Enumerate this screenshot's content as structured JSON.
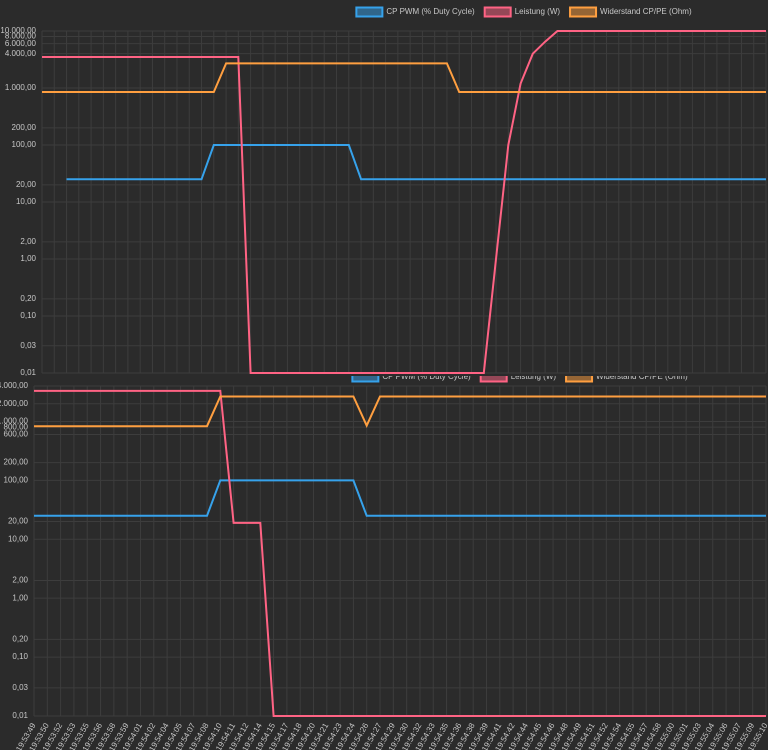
{
  "chart_data": [
    {
      "type": "line",
      "log_scale": true,
      "grid": true,
      "legend": "top",
      "categories": [
        null,
        null,
        null,
        null,
        null,
        null,
        null,
        null,
        null,
        null,
        null,
        null,
        null,
        null,
        null,
        null,
        null,
        null,
        null,
        null,
        null,
        null,
        null,
        null,
        null,
        null,
        null,
        null,
        null,
        null,
        null,
        null,
        null,
        null,
        null,
        null,
        null,
        null,
        null,
        null,
        null,
        null,
        null,
        null,
        null,
        null,
        null,
        null,
        null,
        null,
        null,
        null,
        null,
        null,
        null,
        null,
        null,
        null,
        null,
        null
      ],
      "ylim": [
        0.01,
        10000
      ],
      "yticks": [
        {
          "value": 10000,
          "label": "10.000,00"
        },
        {
          "value": 8000,
          "label": "8.000,00"
        },
        {
          "value": 6000,
          "label": "6.000,00"
        },
        {
          "value": 4000,
          "label": "4.000,00"
        },
        {
          "value": 1000,
          "label": "1.000,00"
        },
        {
          "value": 200,
          "label": "200,00"
        },
        {
          "value": 100,
          "label": "100,00"
        },
        {
          "value": 20,
          "label": "20,00"
        },
        {
          "value": 10,
          "label": "10,00"
        },
        {
          "value": 2,
          "label": "2,00"
        },
        {
          "value": 1,
          "label": "1,00"
        },
        {
          "value": 0.2,
          "label": "0,20"
        },
        {
          "value": 0.1,
          "label": "0,10"
        },
        {
          "value": 0.03,
          "label": "0,03"
        },
        {
          "value": 0.01,
          "label": "0,01"
        }
      ],
      "series": [
        {
          "name": "CP PWM (% Duty Cycle)",
          "color": "#36a2eb",
          "values": [
            null,
            null,
            25,
            25,
            25,
            25,
            25,
            25,
            25,
            25,
            25,
            25,
            25,
            25,
            100,
            100,
            100,
            100,
            100,
            100,
            100,
            100,
            100,
            100,
            100,
            100,
            25,
            25,
            25,
            25,
            25,
            25,
            25,
            25,
            25,
            25,
            25,
            25,
            25,
            25,
            25,
            25,
            25,
            25,
            25,
            25,
            25,
            25,
            25,
            25,
            25,
            25,
            25,
            25,
            25,
            25,
            25,
            25,
            25,
            25
          ]
        },
        {
          "name": "Leistung (W)",
          "color": "#ff6384",
          "values": [
            3500,
            3500,
            3500,
            3500,
            3500,
            3500,
            3500,
            3500,
            3500,
            3500,
            3500,
            3500,
            3500,
            3500,
            3500,
            3500,
            3500,
            0.01,
            0.01,
            0.01,
            0.01,
            0.01,
            0.01,
            0.01,
            0.01,
            0.01,
            0.01,
            0.01,
            0.01,
            0.01,
            0.01,
            0.01,
            0.01,
            0.01,
            0.01,
            0.01,
            0.01,
            1,
            100,
            1200,
            4000,
            6500,
            10000,
            10000,
            10000,
            10000,
            10000,
            10000,
            10000,
            10000,
            10000,
            10000,
            10000,
            10000,
            10000,
            10000,
            10000,
            10000,
            10000,
            10000
          ]
        },
        {
          "name": "Widerstand CP/PE (Ohm)",
          "color": "#ff9f40",
          "values": [
            850,
            850,
            850,
            850,
            850,
            850,
            850,
            850,
            850,
            850,
            850,
            850,
            850,
            850,
            850,
            2700,
            2700,
            2700,
            2700,
            2700,
            2700,
            2700,
            2700,
            2700,
            2700,
            2700,
            2700,
            2700,
            2700,
            2700,
            2700,
            2700,
            2700,
            2700,
            850,
            850,
            850,
            850,
            850,
            850,
            850,
            850,
            850,
            850,
            850,
            850,
            850,
            850,
            850,
            850,
            850,
            850,
            850,
            850,
            850,
            850,
            850,
            850,
            850,
            850
          ]
        }
      ]
    },
    {
      "type": "line",
      "log_scale": true,
      "grid": true,
      "legend": "top",
      "categories": [
        "19:53:49",
        "19:53:50",
        "19:53:52",
        "19:53:53",
        "19:53:55",
        "19:53:56",
        "19:53:58",
        "19:53:59",
        "19:54:01",
        "19:54:02",
        "19:54:04",
        "19:54:05",
        "19:54:07",
        "19:54:08",
        "19:54:10",
        "19:54:11",
        "19:54:12",
        "19:54:14",
        "19:54:15",
        "19:54:17",
        "19:54:18",
        "19:54:20",
        "19:54:21",
        "19:54:23",
        "19:54:24",
        "19:54:26",
        "19:54:27",
        "19:54:29",
        "19:54:30",
        "19:54:32",
        "19:54:33",
        "19:54:35",
        "19:54:36",
        "19:54:38",
        "19:54:39",
        "19:54:41",
        "19:54:42",
        "19:54:44",
        "19:54:45",
        "19:54:46",
        "19:54:48",
        "19:54:49",
        "19:54:51",
        "19:54:52",
        "19:54:54",
        "19:54:55",
        "19:54:57",
        "19:54:58",
        "19:55:00",
        "19:55:01",
        "19:55:03",
        "19:55:04",
        "19:55:06",
        "19:55:07",
        "19:55:09",
        "19:55:10"
      ],
      "ylim": [
        0.01,
        4000
      ],
      "yticks": [
        {
          "value": 4000,
          "label": "4.000,00"
        },
        {
          "value": 2000,
          "label": "2.000,00"
        },
        {
          "value": 1000,
          "label": "1.000,00"
        },
        {
          "value": 800,
          "label": "800,00"
        },
        {
          "value": 600,
          "label": "600,00"
        },
        {
          "value": 200,
          "label": "200,00"
        },
        {
          "value": 100,
          "label": "100,00"
        },
        {
          "value": 20,
          "label": "20,00"
        },
        {
          "value": 10,
          "label": "10,00"
        },
        {
          "value": 2,
          "label": "2,00"
        },
        {
          "value": 1,
          "label": "1,00"
        },
        {
          "value": 0.2,
          "label": "0,20"
        },
        {
          "value": 0.1,
          "label": "0,10"
        },
        {
          "value": 0.03,
          "label": "0,03"
        },
        {
          "value": 0.01,
          "label": "0,01"
        }
      ],
      "series": [
        {
          "name": "CP PWM (% Duty Cycle)",
          "color": "#36a2eb",
          "values": [
            25,
            25,
            25,
            25,
            25,
            25,
            25,
            25,
            25,
            25,
            25,
            25,
            25,
            25,
            100,
            100,
            100,
            100,
            100,
            100,
            100,
            100,
            100,
            100,
            100,
            25,
            25,
            25,
            25,
            25,
            25,
            25,
            25,
            25,
            25,
            25,
            25,
            25,
            25,
            25,
            25,
            25,
            25,
            25,
            25,
            25,
            25,
            25,
            25,
            25,
            25,
            25,
            25,
            25,
            25,
            25
          ]
        },
        {
          "name": "Leistung (W)",
          "color": "#ff6384",
          "values": [
            3300,
            3300,
            3300,
            3300,
            3300,
            3300,
            3300,
            3300,
            3300,
            3300,
            3300,
            3300,
            3300,
            3300,
            3300,
            19,
            19,
            19,
            0.01,
            0.01,
            0.01,
            0.01,
            0.01,
            0.01,
            0.01,
            0.01,
            0.01,
            0.01,
            0.01,
            0.01,
            0.01,
            0.01,
            0.01,
            0.01,
            0.01,
            0.01,
            0.01,
            0.01,
            0.01,
            0.01,
            0.01,
            0.01,
            0.01,
            0.01,
            0.01,
            0.01,
            0.01,
            0.01,
            0.01,
            0.01,
            0.01,
            0.01,
            0.01,
            0.01,
            0.01,
            0.01
          ]
        },
        {
          "name": "Widerstand CP/PE (Ohm)",
          "color": "#ff9f40",
          "values": [
            830,
            830,
            830,
            830,
            830,
            830,
            830,
            830,
            830,
            830,
            830,
            830,
            830,
            830,
            2650,
            2650,
            2650,
            2650,
            2650,
            2650,
            2650,
            2650,
            2650,
            2650,
            2650,
            850,
            2650,
            2650,
            2650,
            2650,
            2650,
            2650,
            2650,
            2650,
            2650,
            2650,
            2650,
            2650,
            2650,
            2650,
            2650,
            2650,
            2650,
            2650,
            2650,
            2650,
            2650,
            2650,
            2650,
            2650,
            2650,
            2650,
            2650,
            2650,
            2650,
            2650
          ]
        }
      ]
    }
  ]
}
